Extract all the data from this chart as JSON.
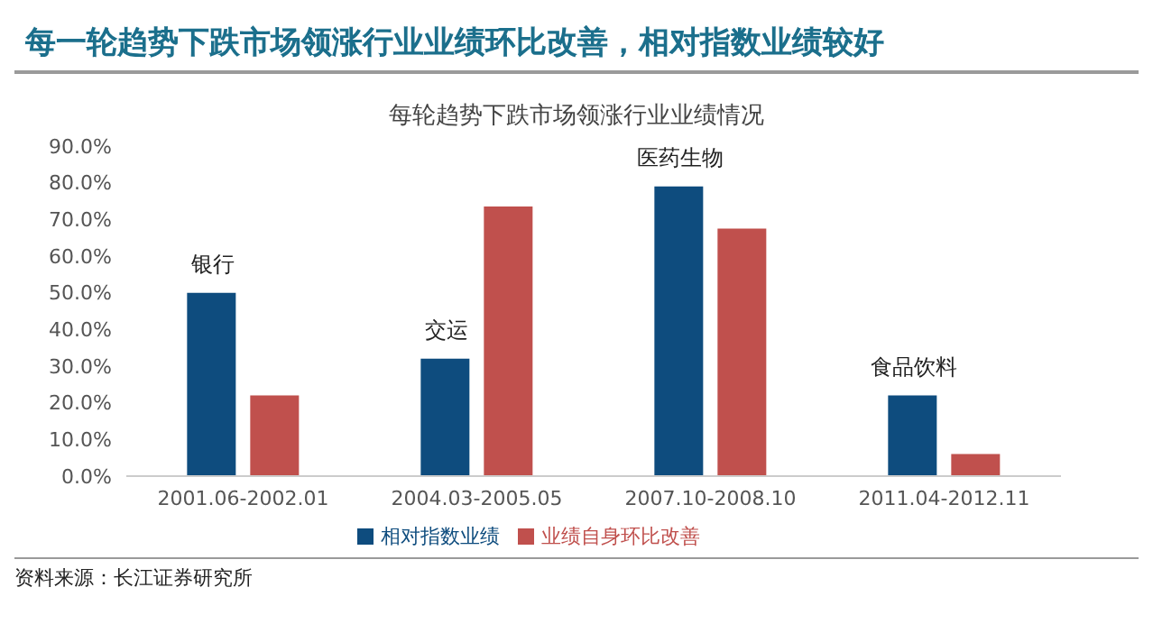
{
  "chart_data": {
    "type": "bar",
    "title": "每一轮趋势下跌市场领涨行业业绩环比改善，相对指数业绩较好",
    "subtitle": "每轮趋势下跌市场领涨行业业绩情况",
    "categories": [
      "2001.06-2002.01",
      "2004.03-2005.05",
      "2007.10-2008.10",
      "2011.04-2012.11"
    ],
    "series": [
      {
        "name": "相对指数业绩",
        "color": "#0e4c7e",
        "values": [
          50,
          32,
          79,
          22
        ]
      },
      {
        "name": "业绩自身环比改善",
        "color": "#c0504d",
        "values": [
          22,
          73.5,
          67.5,
          6
        ]
      }
    ],
    "ylim": [
      0,
      90
    ],
    "yticks": [
      {
        "value": 0,
        "label": "0.0%"
      },
      {
        "value": 10,
        "label": "10.0%"
      },
      {
        "value": 20,
        "label": "20.0%"
      },
      {
        "value": 30,
        "label": "30.0%"
      },
      {
        "value": 40,
        "label": "40.0%"
      },
      {
        "value": 50,
        "label": "50.0%"
      },
      {
        "value": 60,
        "label": "60.0%"
      },
      {
        "value": 70,
        "label": "70.0%"
      },
      {
        "value": 80,
        "label": "80.0%"
      },
      {
        "value": 90,
        "label": "90.0%"
      }
    ],
    "annotations": [
      {
        "text": "银行",
        "x": "2001.06-2002.01",
        "y": 50
      },
      {
        "text": "交运",
        "x": "2004.03-2005.05",
        "y": 32
      },
      {
        "text": "医药生物",
        "x": "2007.10-2008.10",
        "y": 79
      },
      {
        "text": "食品饮料",
        "x": "2011.04-2012.11",
        "y": 22
      },
      "资料来源：长江证券研究所"
    ],
    "grid": false,
    "legend": "bottom"
  }
}
